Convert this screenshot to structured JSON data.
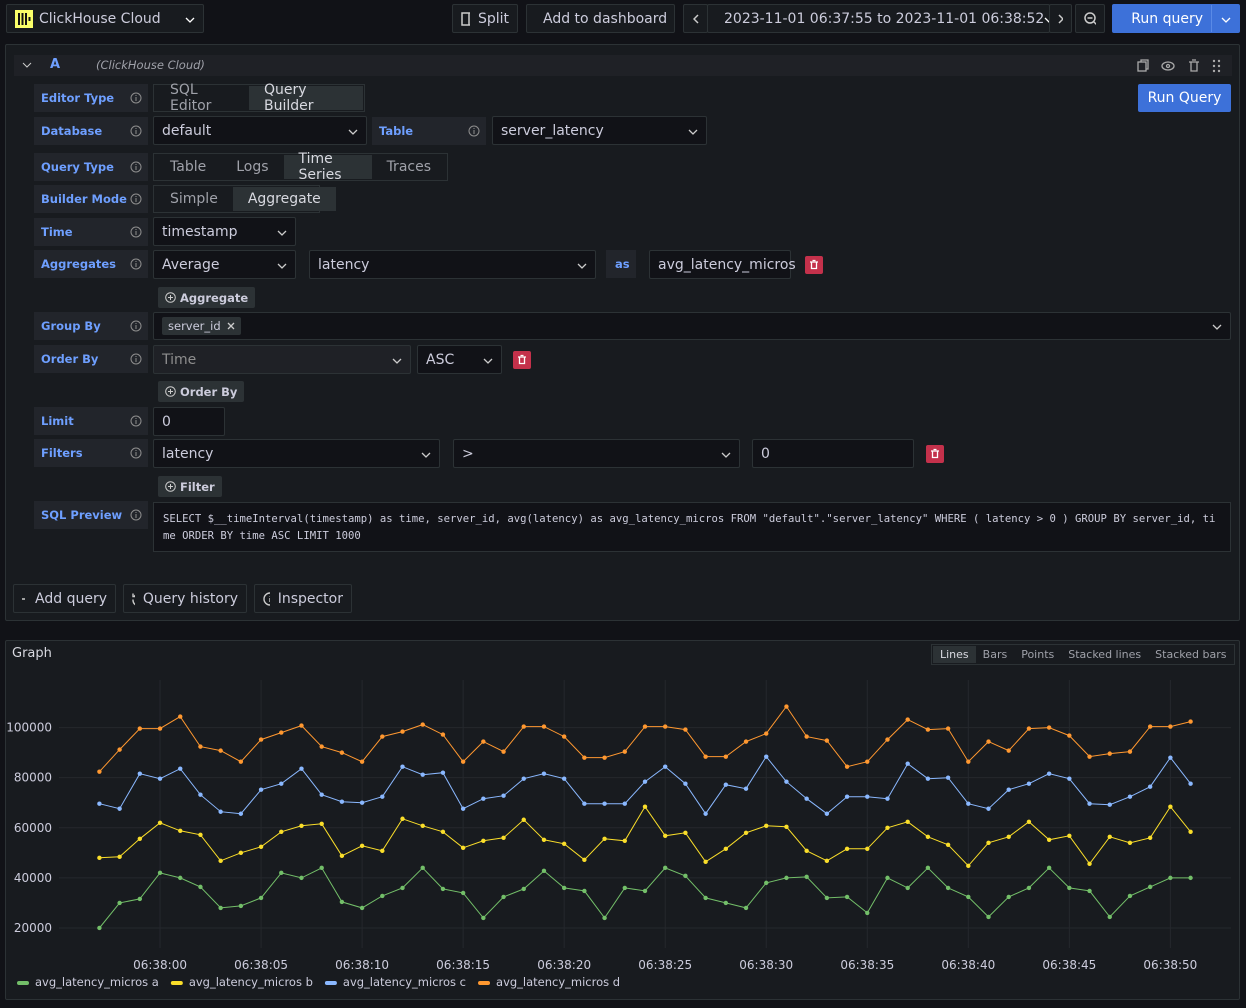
{
  "toolbar": {
    "datasource": "ClickHouse Cloud",
    "split": "Split",
    "add_to_dashboard": "Add to dashboard",
    "time_range": "2023-11-01 06:37:55 to 2023-11-01 06:38:52",
    "run_query": "Run query"
  },
  "query": {
    "ref": "A",
    "datasource": "(ClickHouse Cloud)",
    "run_button": "Run Query",
    "editor_type": {
      "label": "Editor Type",
      "options": [
        "SQL Editor",
        "Query Builder"
      ]
    },
    "database": {
      "label": "Database",
      "value": "default"
    },
    "table": {
      "label": "Table",
      "value": "server_latency"
    },
    "query_type": {
      "label": "Query Type",
      "options": [
        "Table",
        "Logs",
        "Time Series",
        "Traces"
      ]
    },
    "builder_mode": {
      "label": "Builder Mode",
      "options": [
        "Simple",
        "Aggregate"
      ]
    },
    "time": {
      "label": "Time",
      "value": "timestamp"
    },
    "aggregates": {
      "label": "Aggregates",
      "function": "Average",
      "column": "latency",
      "as": "as",
      "alias": "avg_latency_micros",
      "add": "Aggregate"
    },
    "group_by": {
      "label": "Group By",
      "tag": "server_id"
    },
    "order_by": {
      "label": "Order By",
      "column": "Time",
      "direction": "ASC",
      "add": "Order By"
    },
    "limit": {
      "label": "Limit",
      "value": "0"
    },
    "filters": {
      "label": "Filters",
      "column": "latency",
      "operator": ">",
      "value": "0",
      "add": "Filter"
    },
    "sql_preview": {
      "label": "SQL Preview",
      "sql": "SELECT $__timeInterval(timestamp) as time, server_id, avg(latency) as avg_latency_micros FROM \"default\".\"server_latency\" WHERE ( latency > 0 ) GROUP BY server_id, time ORDER BY time ASC LIMIT 1000"
    }
  },
  "actions": [
    "Add query",
    "Query history",
    "Inspector"
  ],
  "graph": {
    "modes": [
      "Lines",
      "Bars",
      "Points",
      "Stacked lines",
      "Stacked bars"
    ]
  },
  "chart_data": {
    "type": "line",
    "title": "Graph",
    "x": [
      "06:37:57",
      "06:37:58",
      "06:37:59",
      "06:38:00",
      "06:38:01",
      "06:38:02",
      "06:38:03",
      "06:38:04",
      "06:38:05",
      "06:38:06",
      "06:38:07",
      "06:38:08",
      "06:38:09",
      "06:38:10",
      "06:38:11",
      "06:38:12",
      "06:38:13",
      "06:38:14",
      "06:38:15",
      "06:38:16",
      "06:38:17",
      "06:38:18",
      "06:38:19",
      "06:38:20",
      "06:38:21",
      "06:38:22",
      "06:38:23",
      "06:38:24",
      "06:38:25",
      "06:38:26",
      "06:38:27",
      "06:38:28",
      "06:38:29",
      "06:38:30",
      "06:38:31",
      "06:38:32",
      "06:38:33",
      "06:38:34",
      "06:38:35",
      "06:38:36",
      "06:38:37",
      "06:38:38",
      "06:38:39",
      "06:38:40",
      "06:38:41",
      "06:38:42",
      "06:38:43",
      "06:38:44",
      "06:38:45",
      "06:38:46",
      "06:38:47",
      "06:38:48",
      "06:38:49",
      "06:38:50",
      "06:38:51"
    ],
    "xlim": [
      "06:37:55",
      "06:38:53"
    ],
    "xticks": [
      "06:38:00",
      "06:38:05",
      "06:38:10",
      "06:38:15",
      "06:38:20",
      "06:38:25",
      "06:38:30",
      "06:38:35",
      "06:38:40",
      "06:38:45",
      "06:38:50"
    ],
    "ylim": [
      12000,
      119000
    ],
    "yticks": [
      20000,
      40000,
      60000,
      80000,
      100000
    ],
    "grid": true,
    "legend": "bottom",
    "series": [
      {
        "name": "avg_latency_micros a",
        "color": "#73bf69",
        "values": [
          20000,
          30000,
          31600,
          42000,
          40000,
          36400,
          28000,
          28800,
          32000,
          42000,
          40000,
          44000,
          30400,
          28000,
          32800,
          36000,
          44000,
          35600,
          34000,
          24000,
          32400,
          35600,
          42800,
          36000,
          34800,
          24000,
          36000,
          34800,
          44000,
          40800,
          32000,
          30000,
          28000,
          38000,
          40000,
          40400,
          32000,
          32400,
          26000,
          40000,
          36000,
          44000,
          36000,
          32400,
          24400,
          32400,
          36000,
          44000,
          36000,
          34800,
          24400,
          32800,
          36400,
          40000,
          40000
        ]
      },
      {
        "name": "avg_latency_micros b",
        "color": "#fade2a",
        "values": [
          48000,
          48400,
          55600,
          62000,
          58800,
          57200,
          46800,
          50000,
          52400,
          58400,
          60800,
          61600,
          48800,
          52800,
          50800,
          63600,
          60800,
          58400,
          52000,
          54800,
          56000,
          63200,
          55200,
          53600,
          47200,
          55600,
          54800,
          68400,
          56800,
          58000,
          46400,
          51600,
          58000,
          60800,
          60400,
          50800,
          46800,
          51600,
          51600,
          60000,
          62400,
          56400,
          53200,
          44800,
          54000,
          56400,
          62400,
          55200,
          56800,
          45600,
          56400,
          54000,
          56000,
          68400,
          58400
        ]
      },
      {
        "name": "avg_latency_micros c",
        "color": "#8ab8ff",
        "values": [
          69600,
          67600,
          81600,
          79600,
          83600,
          73200,
          66400,
          65600,
          75200,
          77600,
          83600,
          73200,
          70400,
          70000,
          72400,
          84400,
          81200,
          82000,
          67600,
          71600,
          72800,
          79600,
          81600,
          79600,
          69600,
          69600,
          69600,
          78400,
          84400,
          77600,
          65600,
          77200,
          75600,
          88400,
          78400,
          71600,
          65600,
          72400,
          72400,
          71600,
          85600,
          79600,
          80000,
          69600,
          67600,
          75200,
          77600,
          81600,
          79600,
          69600,
          69200,
          72400,
          76400,
          88000,
          77600
        ]
      },
      {
        "name": "avg_latency_micros d",
        "color": "#ff9830",
        "values": [
          82400,
          91200,
          99600,
          99600,
          104400,
          92400,
          90800,
          86400,
          95200,
          98000,
          100800,
          92400,
          90000,
          86400,
          96400,
          98400,
          101200,
          97200,
          86400,
          94400,
          90400,
          100400,
          100400,
          96400,
          88000,
          88000,
          90400,
          100400,
          100400,
          99200,
          88400,
          88400,
          94400,
          97600,
          108400,
          96400,
          94800,
          84400,
          86400,
          95200,
          103200,
          99200,
          99600,
          86400,
          94400,
          90800,
          99600,
          100000,
          96800,
          88400,
          89600,
          90400,
          100400,
          100400,
          102400
        ]
      }
    ]
  }
}
